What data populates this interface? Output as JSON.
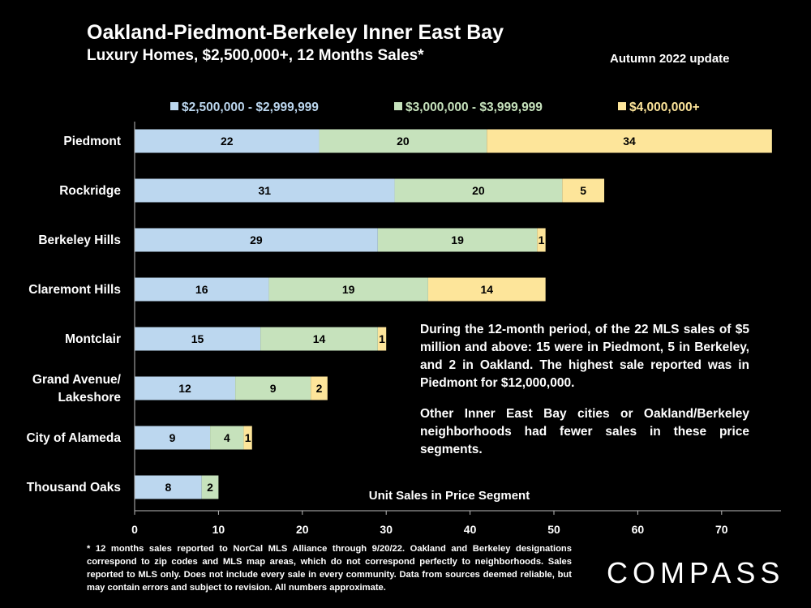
{
  "header": {
    "title": "Oakland-Piedmont-Berkeley Inner East Bay",
    "subtitle": "Luxury Homes, $2,500,000+, 12 Months Sales*",
    "update": "Autumn 2022 update"
  },
  "chart_data": {
    "type": "bar",
    "orientation": "horizontal",
    "stacked": true,
    "title": "Oakland-Piedmont-Berkeley Inner East Bay",
    "subtitle": "Luxury Homes, $2,500,000+, 12 Months Sales*",
    "xlabel": "Unit Sales in Price Segment",
    "ylabel": "",
    "xlim": [
      0,
      77
    ],
    "xticks": [
      0,
      10,
      20,
      30,
      40,
      50,
      60,
      70
    ],
    "grid": false,
    "legend_position": "top",
    "categories": [
      [
        "Piedmont"
      ],
      [
        "Rockridge"
      ],
      [
        "Berkeley Hills"
      ],
      [
        "Claremont Hills"
      ],
      [
        "Montclair"
      ],
      [
        "Grand Avenue/",
        "Lakeshore"
      ],
      [
        "City of Alameda"
      ],
      [
        "Thousand Oaks"
      ]
    ],
    "series": [
      {
        "name": "$2,500,000 - $2,999,999",
        "color": "#bcd7ef",
        "values": [
          22,
          31,
          29,
          16,
          15,
          12,
          9,
          8
        ]
      },
      {
        "name": "$3,000,000 - $3,999,999",
        "color": "#c6e2bc",
        "values": [
          20,
          20,
          19,
          19,
          14,
          9,
          4,
          2
        ]
      },
      {
        "name": "$4,000,000+",
        "color": "#fde59a",
        "values": [
          34,
          5,
          1,
          14,
          1,
          2,
          1,
          0
        ]
      }
    ]
  },
  "note": {
    "p1": "During the 12-month period, of the 22 MLS sales of $5 million and above: 15 were in Piedmont, 5 in Berkeley, and 2 in Oakland. The highest sale reported was in Piedmont for $12,000,000.",
    "p2": "Other Inner East Bay cities or Oakland/Berkeley neighborhoods had fewer sales in these price segments."
  },
  "footnote": "* 12 months sales reported to NorCal MLS Alliance through 9/20/22. Oakland and Berkeley designations correspond to zip codes and MLS map areas, which do not correspond perfectly to neighborhoods. Sales reported to MLS only. Does not include every sale in every community. Data from sources deemed reliable, but may contain errors and subject to revision. All numbers approximate.",
  "logo": "COMPASS"
}
